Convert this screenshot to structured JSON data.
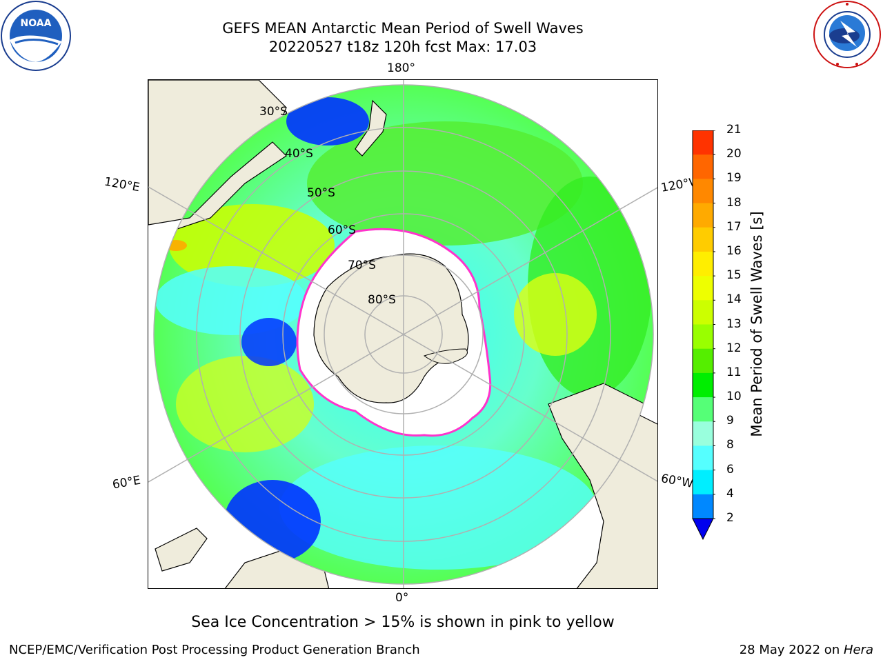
{
  "header": {
    "title_line1": "GEFS MEAN Antarctic Mean Period of Swell Waves",
    "title_line2": "20220527 t18z 120h fcst   Max: 17.03"
  },
  "logos": {
    "left": {
      "icon": "noaa-logo-icon",
      "text": "NOAA",
      "ring_text": "NATIONAL OCEANIC AND ATMOSPHERIC ADMINISTRATION · U.S. DEPARTMENT OF COMMERCE"
    },
    "right": {
      "icon": "nws-logo-icon",
      "ring_text": "NATIONAL WEATHER SERVICE"
    }
  },
  "map": {
    "projection": "south-polar-stereographic",
    "longitude_labels": {
      "top": "180°",
      "bottom": "0°",
      "upper_left": "120°E",
      "upper_right": "120°W",
      "lower_left": "60°E",
      "lower_right": "60°W"
    },
    "latitude_labels": [
      "30°S",
      "40°S",
      "50°S",
      "60°S",
      "70°S",
      "80°S"
    ],
    "colors": {
      "land": "#efecdc",
      "ice": "#ffffff",
      "ice_edge": "#ff33cc",
      "grid": "#b0b0b0",
      "coast": "#000000"
    }
  },
  "colorbar": {
    "label": "Mean Period of Swell Waves [s]",
    "ticks": [
      "21",
      "20",
      "19",
      "18",
      "17",
      "16",
      "15",
      "14",
      "13",
      "12",
      "11",
      "10",
      "9",
      "8",
      "6",
      "4",
      "2"
    ],
    "colors_top_to_bottom": [
      "#ff0000",
      "#ff3300",
      "#ff6600",
      "#ff8800",
      "#ffaa00",
      "#ffcc00",
      "#ffee00",
      "#eeff00",
      "#ccff00",
      "#99ff00",
      "#55ee00",
      "#00ee00",
      "#55ff77",
      "#99ffdd",
      "#55ffff",
      "#00eeff",
      "#0088ff",
      "#0033ff"
    ],
    "extend_color": "#0000ee"
  },
  "caption": "Sea Ice Concentration > 15% is shown in pink to yellow",
  "footer": {
    "left": "NCEP/EMC/Verification Post Processing Product Generation Branch",
    "right_prefix": "28 May 2022 on ",
    "right_host": "Hera"
  }
}
